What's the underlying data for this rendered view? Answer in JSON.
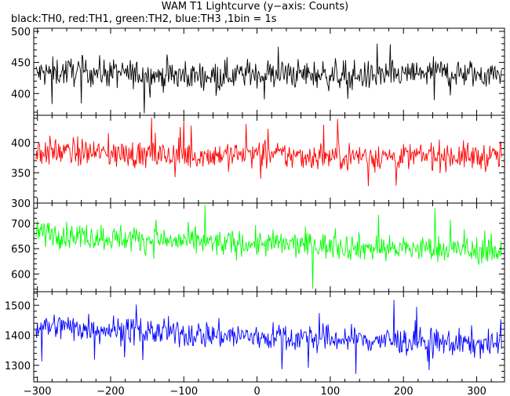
{
  "chart_data": {
    "type": "line",
    "title": "WAM T1 Lightcurve (y−axis: Counts)",
    "subtitle": "black:TH0, red:TH1, green:TH2, blue:TH3 ,1bin = 1s",
    "xlabel": "",
    "ylabel": "",
    "xlim": [
      -305,
      338
    ],
    "x_ticks": [
      -300,
      -200,
      -100,
      0,
      100,
      200,
      300
    ],
    "x_tick_labels": [
      "−300",
      "−200",
      "−100",
      "0",
      "100",
      "200",
      "300"
    ],
    "grid": false,
    "bin_seconds": 1,
    "panels": [
      {
        "channel": "TH0",
        "color": "#000000",
        "ylim": [
          365,
          505
        ],
        "y_ticks": [
          400,
          450,
          500
        ],
        "x": [
          -300,
          -250,
          -200,
          -150,
          -100,
          -50,
          0,
          50,
          100,
          150,
          200,
          250,
          300,
          330
        ],
        "y": [
          432,
          436,
          433,
          430,
          428,
          430,
          432,
          431,
          430,
          428,
          430,
          435,
          430,
          433
        ],
        "noise": 30
      },
      {
        "channel": "TH1",
        "color": "#ff0000",
        "ylim": [
          300,
          445
        ],
        "y_ticks": [
          300,
          350,
          400
        ],
        "x": [
          -300,
          -250,
          -200,
          -150,
          -100,
          -50,
          0,
          50,
          100,
          150,
          200,
          250,
          300,
          330
        ],
        "y": [
          385,
          384,
          382,
          379,
          378,
          380,
          381,
          378,
          377,
          378,
          376,
          379,
          376,
          378
        ],
        "noise": 30
      },
      {
        "channel": "TH2",
        "color": "#00ff00",
        "ylim": [
          565,
          740
        ],
        "y_ticks": [
          600,
          650,
          700
        ],
        "x": [
          -300,
          -250,
          -200,
          -150,
          -100,
          -50,
          0,
          50,
          100,
          150,
          200,
          250,
          300,
          330
        ],
        "y": [
          682,
          676,
          672,
          668,
          664,
          660,
          660,
          658,
          656,
          652,
          650,
          650,
          646,
          644
        ],
        "noise": 34
      },
      {
        "channel": "TH3",
        "color": "#0000ff",
        "ylim": [
          1245,
          1545
        ],
        "y_ticks": [
          1300,
          1400,
          1500
        ],
        "x": [
          -300,
          -250,
          -200,
          -150,
          -100,
          -50,
          0,
          50,
          100,
          150,
          200,
          250,
          300,
          330
        ],
        "y": [
          1430,
          1428,
          1420,
          1412,
          1405,
          1400,
          1395,
          1392,
          1388,
          1385,
          1380,
          1375,
          1372,
          1370
        ],
        "noise": 60
      }
    ]
  }
}
